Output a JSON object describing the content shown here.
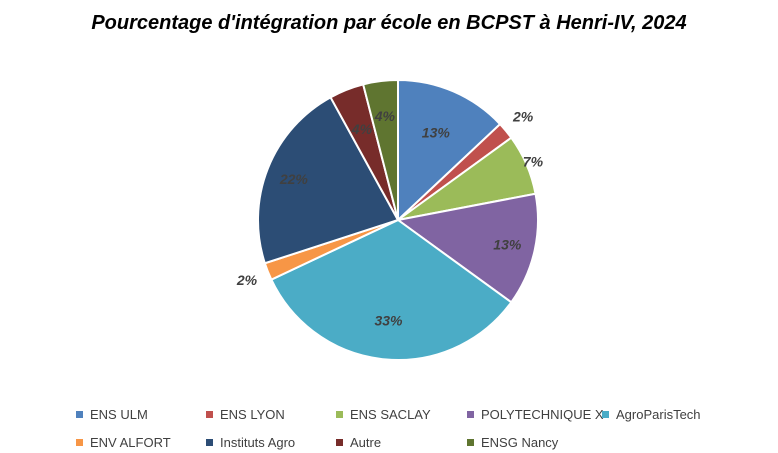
{
  "chart_data": {
    "type": "pie",
    "title": "Pourcentage d'intégration par école en BCPST à Henri-IV, 2024",
    "legend_position": "bottom",
    "slices": [
      {
        "label": "ENS ULM",
        "value": 13,
        "display": "13%",
        "color": "#4f81bd"
      },
      {
        "label": "ENS LYON",
        "value": 2,
        "display": "2%",
        "color": "#c0504d"
      },
      {
        "label": "ENS SACLAY",
        "value": 7,
        "display": "7%",
        "color": "#9bbb59"
      },
      {
        "label": "POLYTECHNIQUE X",
        "value": 13,
        "display": "13%",
        "color": "#8064a2"
      },
      {
        "label": "AgroParisTech",
        "value": 33,
        "display": "33%",
        "color": "#4bacc6"
      },
      {
        "label": "ENV ALFORT",
        "value": 2,
        "display": "2%",
        "color": "#f79646"
      },
      {
        "label": "Instituts Agro",
        "value": 22,
        "display": "22%",
        "color": "#2c4d75"
      },
      {
        "label": "Autre",
        "value": 4,
        "display": "4%",
        "color": "#772c2a"
      },
      {
        "label": "ENSG Nancy",
        "value": 4,
        "display": "4%",
        "color": "#5f7530"
      }
    ]
  }
}
